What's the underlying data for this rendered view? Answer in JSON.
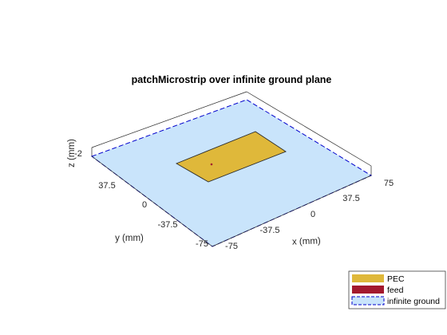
{
  "title": "patchMicrostrip over infinite ground plane",
  "axes": {
    "xlabel": "x (mm)",
    "ylabel": "y (mm)",
    "zlabel": "z (mm)",
    "x_ticks": [
      "-75",
      "-37.5",
      "0",
      "37.5",
      "75"
    ],
    "y_ticks": [
      "-75",
      "-37.5",
      "0",
      "37.5"
    ],
    "z_ticks": [
      "-2"
    ]
  },
  "legend": {
    "placement": "bottom-right",
    "items": [
      {
        "label": "PEC",
        "color": "#dfb83a"
      },
      {
        "label": "feed",
        "color": "#a3192e"
      },
      {
        "label": "infinite ground",
        "color": "#c9e4fb",
        "border": "#0000cc"
      }
    ]
  },
  "colors": {
    "ground": "#c9e4fb",
    "ground_edge": "#0000cc",
    "patch": "#dfb83a",
    "patch_edge": "#2a2a2a",
    "feed": "#a3192e"
  }
}
